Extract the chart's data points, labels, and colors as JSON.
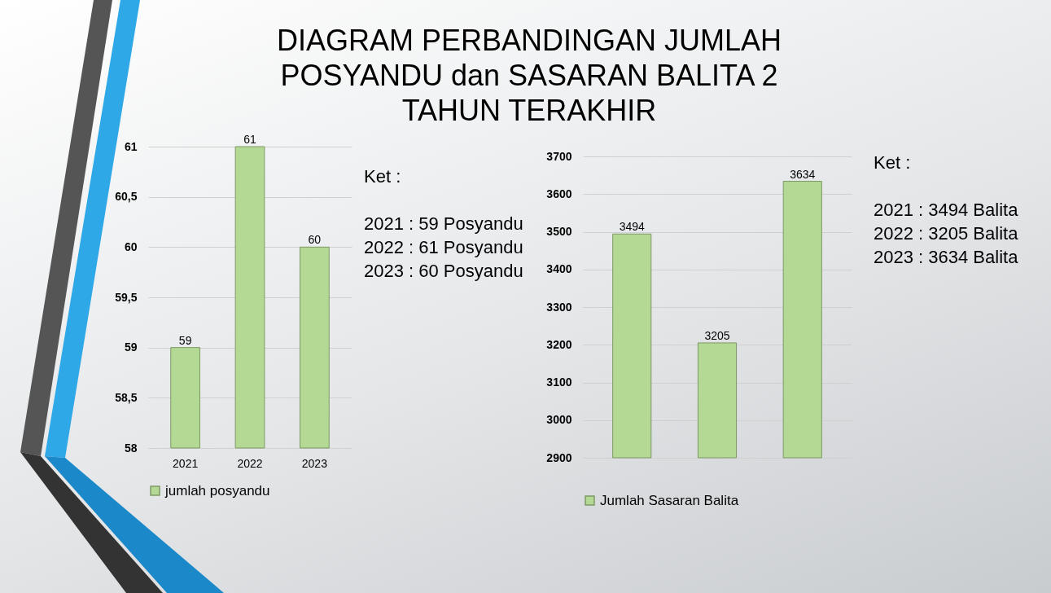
{
  "chart_data": [
    {
      "type": "bar",
      "title": "DIAGRAM PERBANDINGAN JUMLAH POSYANDU dan SASARAN BALITA 2 TAHUN TERAKHIR",
      "categories": [
        "2021",
        "2022",
        "2023"
      ],
      "series": [
        {
          "name": "jumlah posyandu",
          "color": "#b4d994",
          "values": [
            59,
            61,
            60
          ]
        }
      ],
      "ylim": [
        58,
        61
      ],
      "yticks": [
        58,
        {
          "value": 58.5,
          "label": "58,5"
        },
        59,
        {
          "value": 59.5,
          "label": "59,5"
        },
        60,
        {
          "value": 60.5,
          "label": "60,5"
        },
        61
      ],
      "grid": "y",
      "legend": "bottom",
      "data_labels": true,
      "annotations": [
        "Ket :",
        "2021 : 59 Posyandu",
        "2022 : 61 Posyandu",
        "2023 : 60 Posyandu"
      ]
    },
    {
      "type": "bar",
      "categories": [
        null,
        null,
        null
      ],
      "series": [
        {
          "name": "Jumlah Sasaran Balita",
          "color": "#b4d994",
          "values": [
            3494,
            3205,
            3634
          ]
        }
      ],
      "ylim": [
        2900,
        3700
      ],
      "yticks": [
        2900,
        3000,
        3100,
        3200,
        3300,
        3400,
        3500,
        3600,
        3700
      ],
      "grid": "y",
      "legend": "bottom",
      "data_labels": true,
      "annotations": [
        "Ket :",
        "2021 : 3494 Balita",
        "2022 : 3205 Balita",
        "2023 : 3634 Balita"
      ]
    }
  ]
}
